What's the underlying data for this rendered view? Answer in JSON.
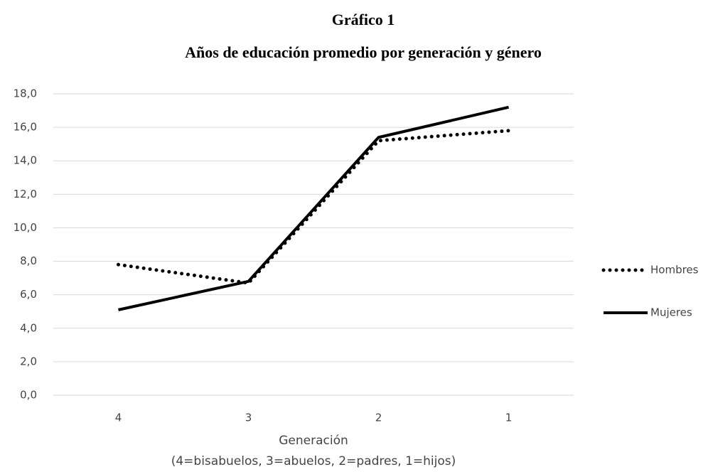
{
  "chart_data": {
    "type": "line",
    "title": "Gráfico 1",
    "subtitle": "Años de educación promedio por generación y género",
    "x_label": "Generación",
    "x_label_note": "(4=bisabuelos, 3=abuelos, 2=padres, 1=hijos)",
    "categories": [
      "4",
      "3",
      "2",
      "1"
    ],
    "series": [
      {
        "name": "Hombres",
        "color": "#000000",
        "line_style": "dotted",
        "values": [
          7.8,
          6.7,
          15.2,
          15.8
        ]
      },
      {
        "name": "Mujeres",
        "color": "#000000",
        "line_style": "solid",
        "values": [
          5.1,
          6.8,
          15.4,
          17.2
        ]
      }
    ],
    "ylim": [
      0,
      18
    ],
    "yticks": [
      {
        "value": 0,
        "label": "0,0"
      },
      {
        "value": 2,
        "label": "2,0"
      },
      {
        "value": 4,
        "label": "4,0"
      },
      {
        "value": 6,
        "label": "6,0"
      },
      {
        "value": 8,
        "label": "8,0"
      },
      {
        "value": 10,
        "label": "10,0"
      },
      {
        "value": 12,
        "label": "12,0"
      },
      {
        "value": 14,
        "label": "14,0"
      },
      {
        "value": 16,
        "label": "16,0"
      },
      {
        "value": 18,
        "label": "18,0"
      }
    ],
    "grid": true,
    "legend": "right"
  }
}
